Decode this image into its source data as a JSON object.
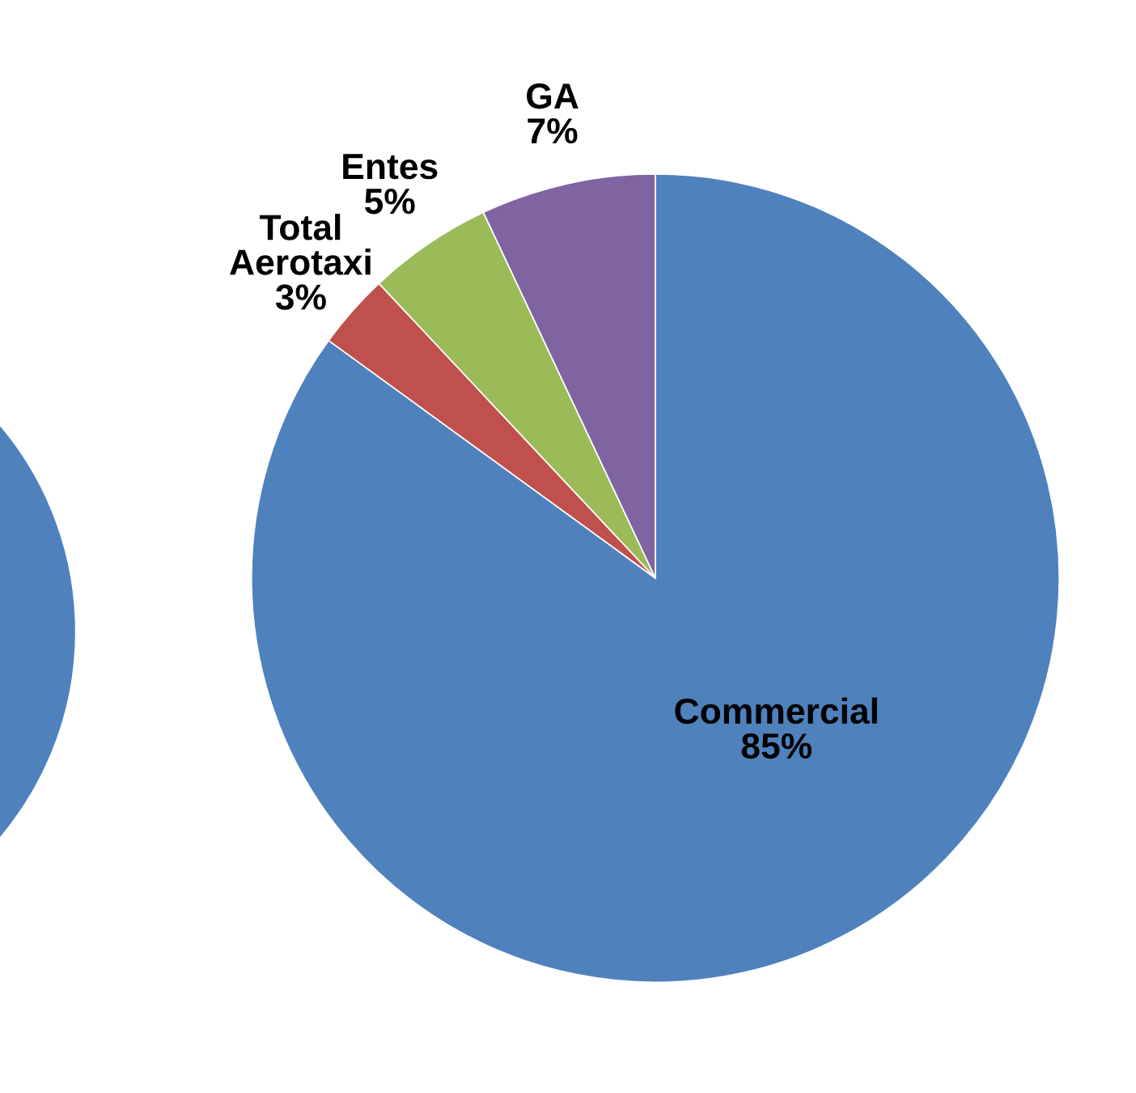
{
  "chart_data": [
    {
      "type": "pie",
      "categories": [
        null
      ],
      "values": [
        100
      ],
      "colors": [
        "#4f81bd"
      ]
    },
    {
      "type": "pie",
      "categories": [
        "Commercial",
        "Total\nAerotaxi",
        "Entes",
        "GA"
      ],
      "values": [
        85,
        3,
        5,
        7
      ],
      "colors": [
        "#4f81bd",
        "#c0504d",
        "#9bbb59",
        "#8064a2"
      ],
      "value_labels": [
        "85%",
        "3%",
        "5%",
        "7%"
      ]
    }
  ]
}
